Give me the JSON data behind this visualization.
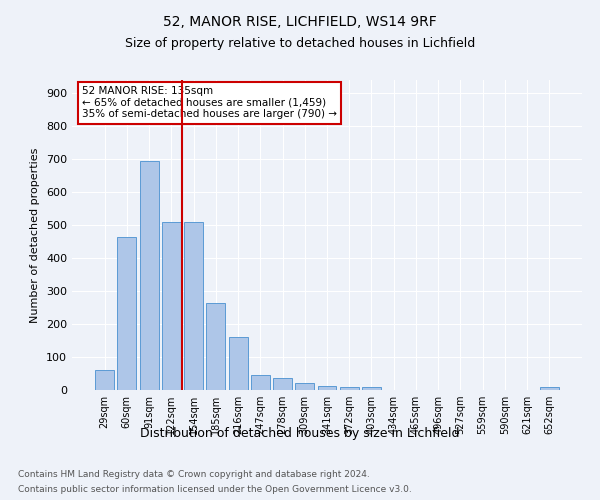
{
  "title1": "52, MANOR RISE, LICHFIELD, WS14 9RF",
  "title2": "Size of property relative to detached houses in Lichfield",
  "xlabel": "Distribution of detached houses by size in Lichfield",
  "ylabel": "Number of detached properties",
  "categories": [
    "29sqm",
    "60sqm",
    "91sqm",
    "122sqm",
    "154sqm",
    "185sqm",
    "216sqm",
    "247sqm",
    "278sqm",
    "309sqm",
    "341sqm",
    "372sqm",
    "403sqm",
    "434sqm",
    "465sqm",
    "496sqm",
    "527sqm",
    "559sqm",
    "590sqm",
    "621sqm",
    "652sqm"
  ],
  "values": [
    60,
    465,
    695,
    510,
    510,
    265,
    160,
    47,
    35,
    20,
    13,
    10,
    8,
    0,
    0,
    0,
    0,
    0,
    0,
    0,
    8
  ],
  "bar_color": "#aec6e8",
  "bar_edge_color": "#5b9bd5",
  "vline_x": 3.5,
  "vline_color": "#cc0000",
  "annotation_line1": "52 MANOR RISE: 135sqm",
  "annotation_line2": "← 65% of detached houses are smaller (1,459)",
  "annotation_line3": "35% of semi-detached houses are larger (790) →",
  "annotation_box_color": "#cc0000",
  "ylim": [
    0,
    940
  ],
  "yticks": [
    0,
    100,
    200,
    300,
    400,
    500,
    600,
    700,
    800,
    900
  ],
  "footnote1": "Contains HM Land Registry data © Crown copyright and database right 2024.",
  "footnote2": "Contains public sector information licensed under the Open Government Licence v3.0.",
  "background_color": "#eef2f9",
  "plot_bg_color": "#eef2f9"
}
